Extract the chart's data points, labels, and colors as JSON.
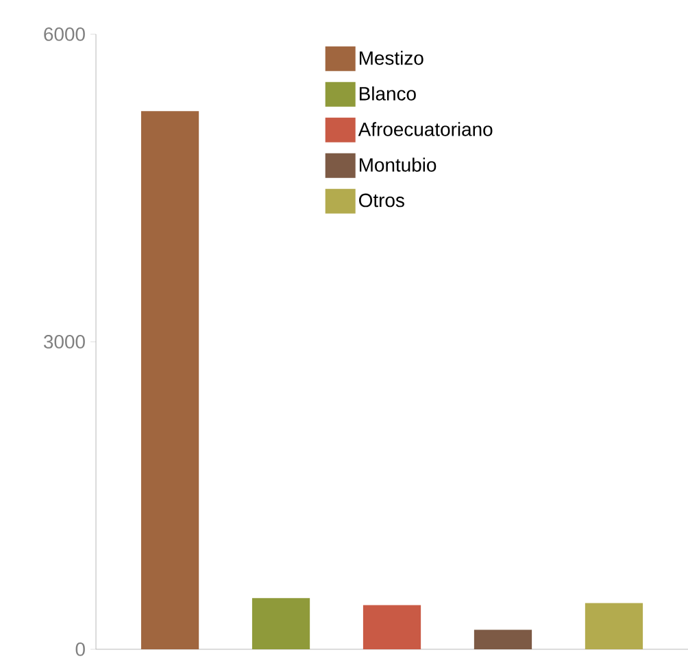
{
  "chart_data": {
    "type": "bar",
    "categories": [
      null,
      null,
      null,
      null,
      null
    ],
    "series": [
      {
        "name": "Mestizo",
        "color": "#a0663f",
        "values": [
          5250,
          null,
          null,
          null,
          null
        ]
      },
      {
        "name": "Blanco",
        "color": "#8f9a3a",
        "values": [
          null,
          500,
          null,
          null,
          null
        ]
      },
      {
        "name": "Afroecuatoriano",
        "color": "#c95a45",
        "values": [
          null,
          null,
          430,
          null,
          null
        ]
      },
      {
        "name": "Montubio",
        "color": "#7d5a45",
        "values": [
          null,
          null,
          null,
          190,
          null
        ]
      },
      {
        "name": "Otros",
        "color": "#b3ab4e",
        "values": [
          null,
          null,
          null,
          null,
          450
        ]
      }
    ],
    "ylim": [
      0,
      6000
    ],
    "yticks": [
      0,
      3000,
      6000
    ],
    "tick_labels": "y",
    "grid": false,
    "legend": "top"
  }
}
